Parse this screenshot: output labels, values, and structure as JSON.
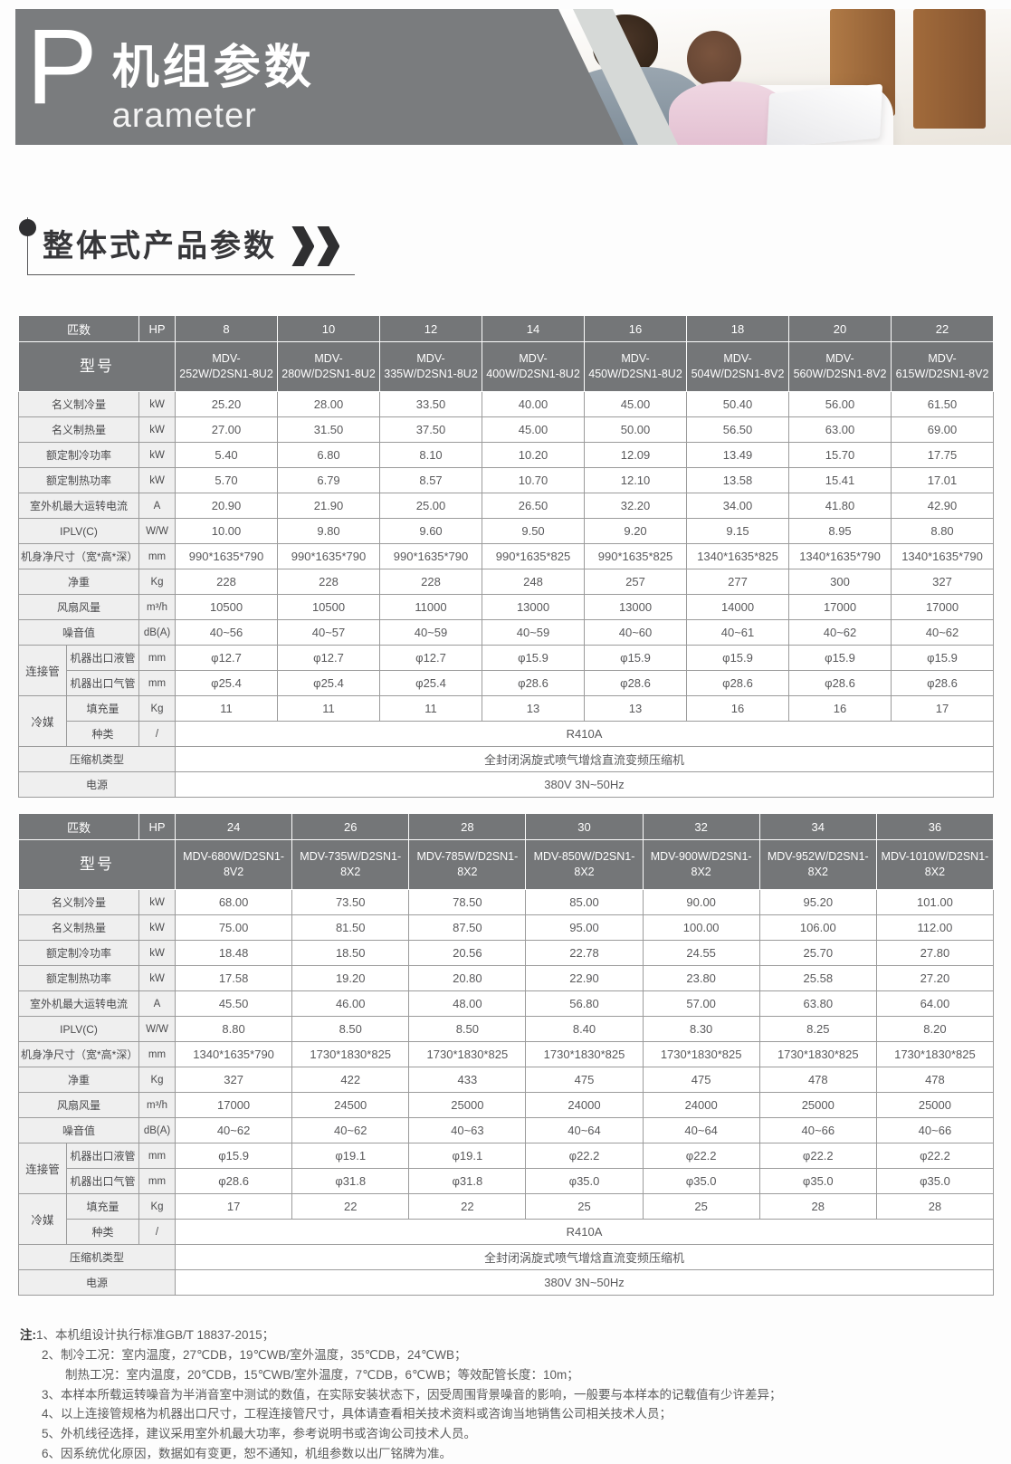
{
  "banner": {
    "letter": "P",
    "title": "机组参数",
    "subtitle": "arameter"
  },
  "section": {
    "title": "整体式产品参数"
  },
  "colors": {
    "banner_gray": "#7a7c7e",
    "table_header_gray": "#747678",
    "label_cell_bg": "#efefef",
    "cell_border": "#9b9b9b",
    "body_text": "#59595b"
  },
  "tables": [
    {
      "name": "spec-table-1",
      "hp_row": {
        "label": "匹数",
        "unit": "HP",
        "values": [
          "8",
          "10",
          "12",
          "14",
          "16",
          "18",
          "20",
          "22"
        ]
      },
      "model_row": {
        "label": "型号",
        "values": [
          "MDV-252W/D2SN1-8U2",
          "MDV-280W/D2SN1-8U2",
          "MDV-335W/D2SN1-8U2",
          "MDV-400W/D2SN1-8U2",
          "MDV-450W/D2SN1-8U2",
          "MDV-504W/D2SN1-8V2",
          "MDV-560W/D2SN1-8V2",
          "MDV-615W/D2SN1-8V2"
        ]
      },
      "rows": [
        {
          "label": "名义制冷量",
          "unit": "kW",
          "values": [
            "25.20",
            "28.00",
            "33.50",
            "40.00",
            "45.00",
            "50.40",
            "56.00",
            "61.50"
          ]
        },
        {
          "label": "名义制热量",
          "unit": "kW",
          "values": [
            "27.00",
            "31.50",
            "37.50",
            "45.00",
            "50.00",
            "56.50",
            "63.00",
            "69.00"
          ]
        },
        {
          "label": "额定制冷功率",
          "unit": "kW",
          "values": [
            "5.40",
            "6.80",
            "8.10",
            "10.20",
            "12.09",
            "13.49",
            "15.70",
            "17.75"
          ]
        },
        {
          "label": "额定制热功率",
          "unit": "kW",
          "values": [
            "5.70",
            "6.79",
            "8.57",
            "10.70",
            "12.10",
            "13.58",
            "15.41",
            "17.01"
          ]
        },
        {
          "label": "室外机最大运转电流",
          "unit": "A",
          "values": [
            "20.90",
            "21.90",
            "25.00",
            "26.50",
            "32.20",
            "34.00",
            "41.80",
            "42.90"
          ]
        },
        {
          "label": "IPLV(C)",
          "unit": "W/W",
          "values": [
            "10.00",
            "9.80",
            "9.60",
            "9.50",
            "9.20",
            "9.15",
            "8.95",
            "8.80"
          ]
        },
        {
          "label": "机身净尺寸（宽*高*深）",
          "unit": "mm",
          "values": [
            "990*1635*790",
            "990*1635*790",
            "990*1635*790",
            "990*1635*825",
            "990*1635*825",
            "1340*1635*825",
            "1340*1635*790",
            "1340*1635*790"
          ]
        },
        {
          "label": "净重",
          "unit": "Kg",
          "values": [
            "228",
            "228",
            "228",
            "248",
            "257",
            "277",
            "300",
            "327"
          ]
        },
        {
          "label": "风扇风量",
          "unit": "m³/h",
          "values": [
            "10500",
            "10500",
            "11000",
            "13000",
            "13000",
            "14000",
            "17000",
            "17000"
          ]
        },
        {
          "label": "噪音值",
          "unit": "dB(A)",
          "values": [
            "40~56",
            "40~57",
            "40~59",
            "40~59",
            "40~60",
            "40~61",
            "40~62",
            "40~62"
          ]
        },
        {
          "group": "连接管",
          "rowspan": 2,
          "label": "机器出口液管",
          "unit": "mm",
          "values": [
            "φ12.7",
            "φ12.7",
            "φ12.7",
            "φ15.9",
            "φ15.9",
            "φ15.9",
            "φ15.9",
            "φ15.9"
          ]
        },
        {
          "inGroup": true,
          "label": "机器出口气管",
          "unit": "mm",
          "values": [
            "φ25.4",
            "φ25.4",
            "φ25.4",
            "φ28.6",
            "φ28.6",
            "φ28.6",
            "φ28.6",
            "φ28.6"
          ]
        },
        {
          "group": "冷媒",
          "rowspan": 2,
          "label": "填充量",
          "unit": "Kg",
          "values": [
            "11",
            "11",
            "11",
            "13",
            "13",
            "16",
            "16",
            "17"
          ]
        },
        {
          "inGroup": true,
          "label": "种类",
          "unit": "/",
          "merged": "R410A"
        },
        {
          "full": true,
          "label": "压缩机类型",
          "merged": "全封闭涡旋式喷气增焓直流变频压缩机"
        },
        {
          "full": true,
          "label": "电源",
          "merged": "380V 3N~50Hz"
        }
      ]
    },
    {
      "name": "spec-table-2",
      "hp_row": {
        "label": "匹数",
        "unit": "HP",
        "values": [
          "24",
          "26",
          "28",
          "30",
          "32",
          "34",
          "36"
        ]
      },
      "model_row": {
        "label": "型号",
        "values": [
          "MDV-680W/D2SN1-8V2",
          "MDV-735W/D2SN1-8X2",
          "MDV-785W/D2SN1-8X2",
          "MDV-850W/D2SN1-8X2",
          "MDV-900W/D2SN1-8X2",
          "MDV-952W/D2SN1-8X2",
          "MDV-1010W/D2SN1-8X2"
        ]
      },
      "rows": [
        {
          "label": "名义制冷量",
          "unit": "kW",
          "values": [
            "68.00",
            "73.50",
            "78.50",
            "85.00",
            "90.00",
            "95.20",
            "101.00"
          ]
        },
        {
          "label": "名义制热量",
          "unit": "kW",
          "values": [
            "75.00",
            "81.50",
            "87.50",
            "95.00",
            "100.00",
            "106.00",
            "112.00"
          ]
        },
        {
          "label": "额定制冷功率",
          "unit": "kW",
          "values": [
            "18.48",
            "18.50",
            "20.56",
            "22.78",
            "24.55",
            "25.70",
            "27.80"
          ]
        },
        {
          "label": "额定制热功率",
          "unit": "kW",
          "values": [
            "17.58",
            "19.20",
            "20.80",
            "22.90",
            "23.80",
            "25.58",
            "27.20"
          ]
        },
        {
          "label": "室外机最大运转电流",
          "unit": "A",
          "values": [
            "45.50",
            "46.00",
            "48.00",
            "56.80",
            "57.00",
            "63.80",
            "64.00"
          ]
        },
        {
          "label": "IPLV(C)",
          "unit": "W/W",
          "values": [
            "8.80",
            "8.50",
            "8.50",
            "8.40",
            "8.30",
            "8.25",
            "8.20"
          ]
        },
        {
          "label": "机身净尺寸（宽*高*深）",
          "unit": "mm",
          "values": [
            "1340*1635*790",
            "1730*1830*825",
            "1730*1830*825",
            "1730*1830*825",
            "1730*1830*825",
            "1730*1830*825",
            "1730*1830*825"
          ]
        },
        {
          "label": "净重",
          "unit": "Kg",
          "values": [
            "327",
            "422",
            "433",
            "475",
            "475",
            "478",
            "478"
          ]
        },
        {
          "label": "风扇风量",
          "unit": "m³/h",
          "values": [
            "17000",
            "24500",
            "25000",
            "24000",
            "24000",
            "25000",
            "25000"
          ]
        },
        {
          "label": "噪音值",
          "unit": "dB(A)",
          "values": [
            "40~62",
            "40~62",
            "40~63",
            "40~64",
            "40~64",
            "40~66",
            "40~66"
          ]
        },
        {
          "group": "连接管",
          "rowspan": 2,
          "label": "机器出口液管",
          "unit": "mm",
          "values": [
            "φ15.9",
            "φ19.1",
            "φ19.1",
            "φ22.2",
            "φ22.2",
            "φ22.2",
            "φ22.2"
          ]
        },
        {
          "inGroup": true,
          "label": "机器出口气管",
          "unit": "mm",
          "values": [
            "φ28.6",
            "φ31.8",
            "φ31.8",
            "φ35.0",
            "φ35.0",
            "φ35.0",
            "φ35.0"
          ]
        },
        {
          "group": "冷媒",
          "rowspan": 2,
          "label": "填充量",
          "unit": "Kg",
          "values": [
            "17",
            "22",
            "22",
            "25",
            "25",
            "28",
            "28"
          ]
        },
        {
          "inGroup": true,
          "label": "种类",
          "unit": "/",
          "merged": "R410A"
        },
        {
          "full": true,
          "label": "压缩机类型",
          "merged": "全封闭涡旋式喷气增焓直流变频压缩机"
        },
        {
          "full": true,
          "label": "电源",
          "merged": "380V 3N~50Hz"
        }
      ]
    }
  ],
  "notes": {
    "prefix": "注:",
    "lines": [
      "1、本机组设计执行标准GB/T 18837-2015；",
      "2、制冷工况：室内温度，27℃DB，19℃WB/室外温度，35℃DB，24℃WB；",
      "制热工况：室内温度，20℃DB，15℃WB/室外温度，7℃DB，6℃WB；等效配管长度：10m；",
      "3、本样本所载运转噪音为半消音室中测试的数值，在实际安装状态下，因受周围背景噪音的影响，一般要与本样本的记载值有少许差异；",
      "4、以上连接管规格为机器出口尺寸，工程连接管尺寸，具体请查看相关技术资料或咨询当地销售公司相关技术人员；",
      "5、外机线径选择，建议采用室外机最大功率，参考说明书或咨询公司技术人员。",
      "6、因系统优化原因，数据如有变更，恕不通知，机组参数以出厂铭牌为准。"
    ]
  }
}
